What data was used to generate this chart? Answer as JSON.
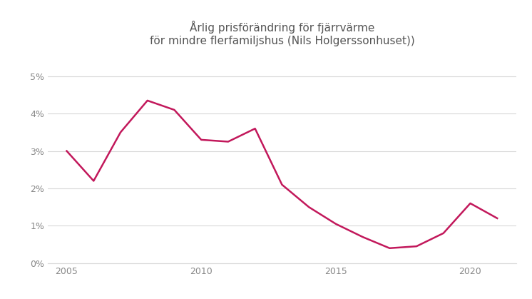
{
  "years": [
    2005,
    2006,
    2007,
    2008,
    2009,
    2010,
    2011,
    2012,
    2013,
    2014,
    2015,
    2016,
    2017,
    2018,
    2019,
    2020,
    2021
  ],
  "values": [
    0.03,
    0.022,
    0.035,
    0.0435,
    0.041,
    0.033,
    0.0325,
    0.036,
    0.021,
    0.015,
    0.0105,
    0.007,
    0.004,
    0.0045,
    0.008,
    0.016,
    0.012
  ],
  "line_color": "#c2185b",
  "line_width": 1.8,
  "title_line1": "Årlig prisförändring för fjärrvärme",
  "title_line2": "för mindre flerfamiljshus (Nils Holgerssonhuset))",
  "title_fontsize": 11,
  "title_color": "#555555",
  "background_color": "#ffffff",
  "grid_color": "#d8d8d8",
  "tick_label_color": "#888888",
  "tick_fontsize": 9,
  "ylim": [
    0.0,
    0.056
  ],
  "yticks": [
    0.0,
    0.01,
    0.02,
    0.03,
    0.04,
    0.05
  ],
  "xlim": [
    2004.3,
    2021.7
  ],
  "xticks": [
    2005,
    2010,
    2015,
    2020
  ]
}
